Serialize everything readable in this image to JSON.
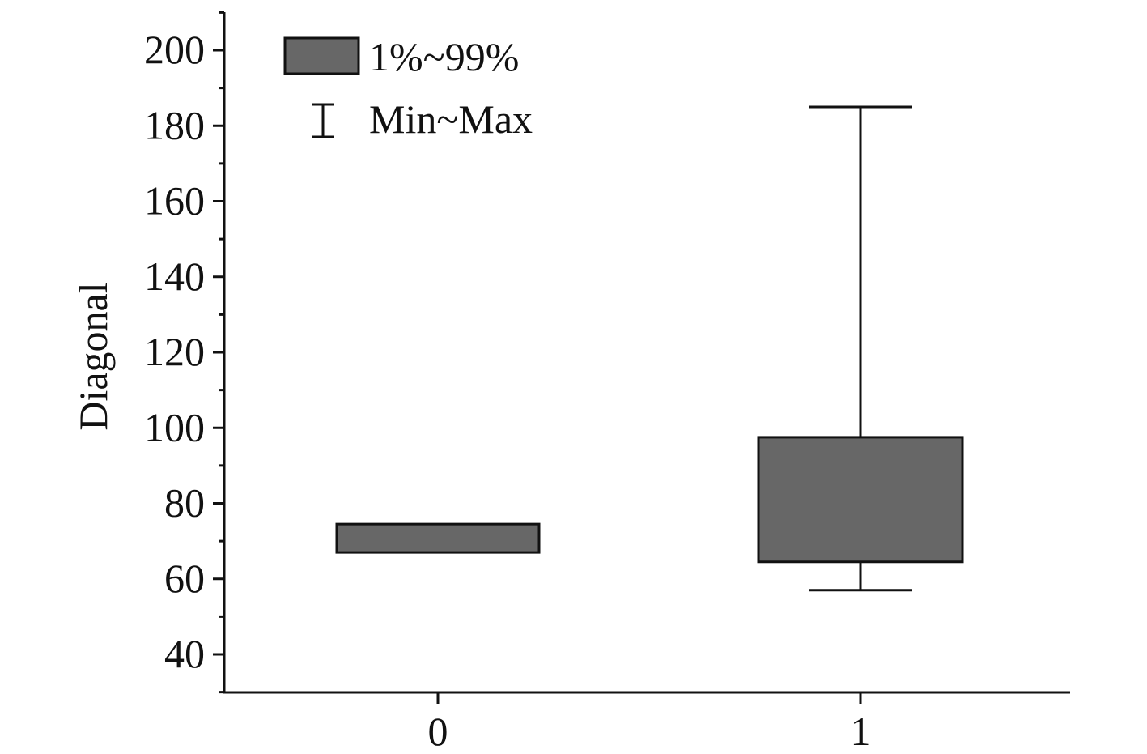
{
  "chart_data": {
    "type": "box",
    "title": "",
    "xlabel": "",
    "ylabel": "Diagonal",
    "ylim": [
      30,
      210
    ],
    "y_ticks": [
      40,
      60,
      80,
      100,
      120,
      140,
      160,
      180,
      200
    ],
    "x_ticks": [
      "0",
      "1"
    ],
    "grid": false,
    "legend_position": "top-left",
    "legend": {
      "box_label": "1%~99%",
      "whisker_label": "Min~Max"
    },
    "box_color": "#676767",
    "series": [
      {
        "category": "0",
        "min": 67,
        "p1": 67,
        "p99": 74.5,
        "max": 74.5
      },
      {
        "category": "1",
        "min": 57,
        "p1": 64.5,
        "p99": 97.5,
        "max": 185
      }
    ]
  }
}
